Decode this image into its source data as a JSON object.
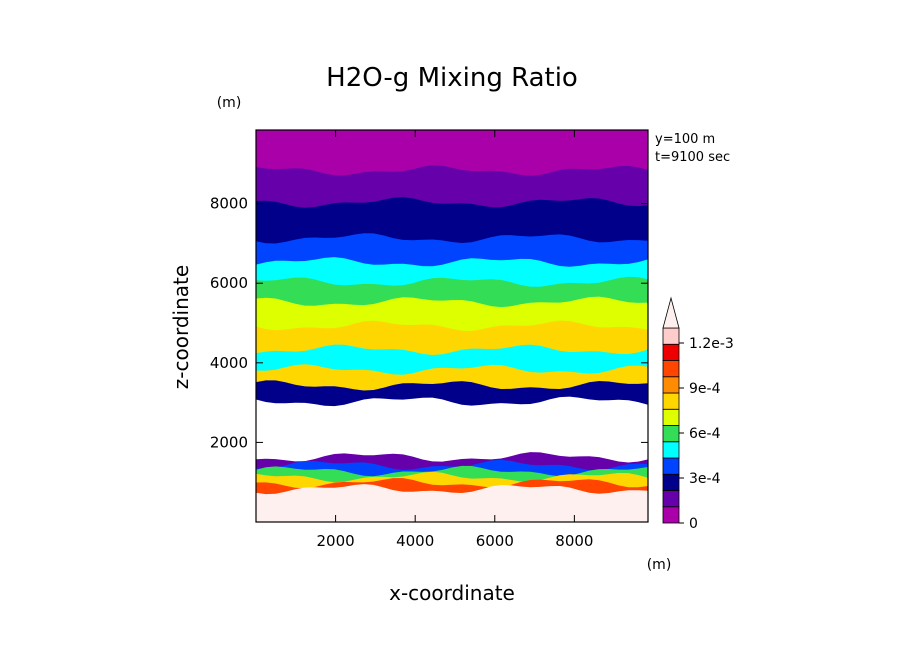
{
  "chart_data": {
    "type": "heatmap",
    "title": "H2O-g Mixing Ratio",
    "xlabel": "x-coordinate",
    "ylabel": "z-coordinate",
    "x_unit": "(m)",
    "y_unit": "(m)",
    "annotations": [
      "y=100 m",
      "t=9100 sec"
    ],
    "xlim": [
      0,
      9850
    ],
    "ylim": [
      0,
      9850
    ],
    "x_ticks": [
      2000,
      4000,
      6000,
      8000
    ],
    "x_tick_labels": [
      "2000",
      "4000",
      "6000",
      "8000"
    ],
    "y_ticks": [
      2000,
      4000,
      6000,
      8000
    ],
    "y_tick_labels": [
      "2000",
      "4000",
      "6000",
      "8000"
    ],
    "colorbar": {
      "range": [
        0,
        0.0013
      ],
      "step": 0.0001,
      "colors": [
        "#aa00aa",
        "#6600aa",
        "#00008b",
        "#0044ff",
        "#00ffff",
        "#33dd55",
        "#ddff00",
        "#ffd700",
        "#ff8c00",
        "#ff4500",
        "#ee0000",
        "#ffcccc"
      ],
      "overflow_color": "#fff0f0",
      "tick_values": [
        0,
        0.0003,
        0.0006,
        0.0009,
        0.0012
      ],
      "tick_labels": [
        "0",
        "3e-4",
        "6e-4",
        "9e-4",
        "1.2e-3"
      ]
    },
    "layers": [
      {
        "z_bottom": 8800,
        "z_top": 9850,
        "value_level": 0,
        "note": "0-1e-4"
      },
      {
        "z_bottom": 8000,
        "z_top": 8800,
        "value_level": 1
      },
      {
        "z_bottom": 7100,
        "z_top": 8000,
        "value_level": 2
      },
      {
        "z_bottom": 6500,
        "z_top": 7100,
        "value_level": 3
      },
      {
        "z_bottom": 6000,
        "z_top": 6500,
        "value_level": 4
      },
      {
        "z_bottom": 5500,
        "z_top": 6000,
        "value_level": 5
      },
      {
        "z_bottom": 4900,
        "z_top": 5500,
        "value_level": 6
      },
      {
        "z_bottom": 4300,
        "z_top": 4900,
        "value_level": 7
      },
      {
        "z_bottom": 3800,
        "z_top": 4300,
        "value_level": 4
      },
      {
        "z_bottom": 3400,
        "z_top": 3800,
        "value_level": 7
      },
      {
        "z_bottom": 3000,
        "z_top": 3400,
        "value_level": 2
      },
      {
        "z_bottom": 1600,
        "z_top": 3000,
        "value_level": "missing"
      },
      {
        "z_bottom": 1400,
        "z_top": 1600,
        "value_level": 1
      },
      {
        "z_bottom": 1250,
        "z_top": 1400,
        "value_level": 3
      },
      {
        "z_bottom": 1100,
        "z_top": 1250,
        "value_level": 5
      },
      {
        "z_bottom": 950,
        "z_top": 1100,
        "value_level": 7
      },
      {
        "z_bottom": 800,
        "z_top": 950,
        "value_level": 9
      },
      {
        "z_bottom": 0,
        "z_top": 800,
        "value_level": 12
      }
    ]
  }
}
